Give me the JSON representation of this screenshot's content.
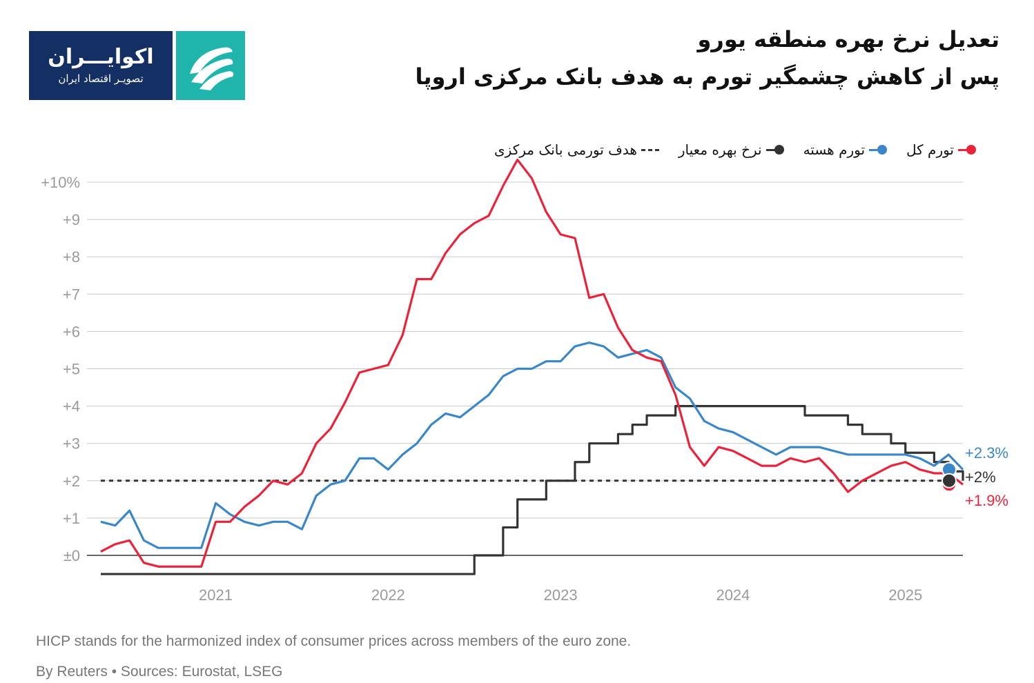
{
  "logo": {
    "name": "اکوایـــران",
    "tagline": "تصویـر اقتصاد ایران"
  },
  "title": {
    "line1": "تعدیل نرخ بهره منطقه یورو",
    "line2": "پس از کاهش چشمگیر تورم به هدف بانک مرکزی اروپا"
  },
  "legend": [
    {
      "label": "تورم کل",
      "color": "#e8233a",
      "style": "line-dot"
    },
    {
      "label": "تورم هسته",
      "color": "#3a86c6",
      "style": "line-dot"
    },
    {
      "label": "نرخ بهره معیار",
      "color": "#333333",
      "style": "line-dot"
    },
    {
      "label": "هدف تورمی بانک مرکزی",
      "color": "#333333",
      "style": "dash"
    }
  ],
  "notes": {
    "line1": "HICP stands for the harmonized index of consumer prices across members of the euro zone.",
    "line2": "By Reuters • Sources: Eurostat, LSEG"
  },
  "chart_data": {
    "type": "line",
    "ylim": [
      -0.5,
      10.5
    ],
    "y_ticks": [
      {
        "value": 10,
        "label": "+10%"
      },
      {
        "value": 9,
        "label": "+9"
      },
      {
        "value": 8,
        "label": "+8"
      },
      {
        "value": 7,
        "label": "+7"
      },
      {
        "value": 6,
        "label": "+6"
      },
      {
        "value": 5,
        "label": "+5"
      },
      {
        "value": 4,
        "label": "+4"
      },
      {
        "value": 3,
        "label": "+3"
      },
      {
        "value": 2,
        "label": "+2"
      },
      {
        "value": 1,
        "label": "+1"
      },
      {
        "value": 0,
        "label": "±0"
      }
    ],
    "x_ticks": [
      {
        "value": "2021-01",
        "label": "2021"
      },
      {
        "value": "2022-01",
        "label": "2022"
      },
      {
        "value": "2023-01",
        "label": "2023"
      },
      {
        "value": "2024-01",
        "label": "2024"
      },
      {
        "value": "2025-01",
        "label": "2025"
      }
    ],
    "grid": true,
    "target": 2,
    "series": [
      {
        "name": "تورم کل",
        "color": "#e8233a",
        "end_label": "+1.9%",
        "x": [
          "2020-05",
          "2020-06",
          "2020-07",
          "2020-08",
          "2020-09",
          "2020-10",
          "2020-11",
          "2020-12",
          "2021-01",
          "2021-02",
          "2021-03",
          "2021-04",
          "2021-05",
          "2021-06",
          "2021-07",
          "2021-08",
          "2021-09",
          "2021-10",
          "2021-11",
          "2021-12",
          "2022-01",
          "2022-02",
          "2022-03",
          "2022-04",
          "2022-05",
          "2022-06",
          "2022-07",
          "2022-08",
          "2022-09",
          "2022-10",
          "2022-11",
          "2022-12",
          "2023-01",
          "2023-02",
          "2023-03",
          "2023-04",
          "2023-05",
          "2023-06",
          "2023-07",
          "2023-08",
          "2023-09",
          "2023-10",
          "2023-11",
          "2023-12",
          "2024-01",
          "2024-02",
          "2024-03",
          "2024-04",
          "2024-05",
          "2024-06",
          "2024-07",
          "2024-08",
          "2024-09",
          "2024-10",
          "2024-11",
          "2024-12",
          "2025-01",
          "2025-02",
          "2025-03",
          "2025-04",
          "2025-05"
        ],
        "values": [
          0.1,
          0.3,
          0.4,
          -0.2,
          -0.3,
          -0.3,
          -0.3,
          -0.3,
          0.9,
          0.9,
          1.3,
          1.6,
          2.0,
          1.9,
          2.2,
          3.0,
          3.4,
          4.1,
          4.9,
          5.0,
          5.1,
          5.9,
          7.4,
          7.4,
          8.1,
          8.6,
          8.9,
          9.1,
          9.9,
          10.6,
          10.1,
          9.2,
          8.6,
          8.5,
          6.9,
          7.0,
          6.1,
          5.5,
          5.3,
          5.2,
          4.3,
          2.9,
          2.4,
          2.9,
          2.8,
          2.6,
          2.4,
          2.4,
          2.6,
          2.5,
          2.6,
          2.2,
          1.7,
          2.0,
          2.2,
          2.4,
          2.5,
          2.3,
          2.2,
          2.2,
          1.9
        ]
      },
      {
        "name": "تورم هسته",
        "color": "#3a86c6",
        "end_label": "+2.3%",
        "x": [
          "2020-05",
          "2020-06",
          "2020-07",
          "2020-08",
          "2020-09",
          "2020-10",
          "2020-11",
          "2020-12",
          "2021-01",
          "2021-02",
          "2021-03",
          "2021-04",
          "2021-05",
          "2021-06",
          "2021-07",
          "2021-08",
          "2021-09",
          "2021-10",
          "2021-11",
          "2021-12",
          "2022-01",
          "2022-02",
          "2022-03",
          "2022-04",
          "2022-05",
          "2022-06",
          "2022-07",
          "2022-08",
          "2022-09",
          "2022-10",
          "2022-11",
          "2022-12",
          "2023-01",
          "2023-02",
          "2023-03",
          "2023-04",
          "2023-05",
          "2023-06",
          "2023-07",
          "2023-08",
          "2023-09",
          "2023-10",
          "2023-11",
          "2023-12",
          "2024-01",
          "2024-02",
          "2024-03",
          "2024-04",
          "2024-05",
          "2024-06",
          "2024-07",
          "2024-08",
          "2024-09",
          "2024-10",
          "2024-11",
          "2024-12",
          "2025-01",
          "2025-02",
          "2025-03",
          "2025-04",
          "2025-05"
        ],
        "values": [
          0.9,
          0.8,
          1.2,
          0.4,
          0.2,
          0.2,
          0.2,
          0.2,
          1.4,
          1.1,
          0.9,
          0.8,
          0.9,
          0.9,
          0.7,
          1.6,
          1.9,
          2.0,
          2.6,
          2.6,
          2.3,
          2.7,
          3.0,
          3.5,
          3.8,
          3.7,
          4.0,
          4.3,
          4.8,
          5.0,
          5.0,
          5.2,
          5.2,
          5.6,
          5.7,
          5.6,
          5.3,
          5.4,
          5.5,
          5.3,
          4.5,
          4.2,
          3.6,
          3.4,
          3.3,
          3.1,
          2.9,
          2.7,
          2.9,
          2.9,
          2.9,
          2.8,
          2.7,
          2.7,
          2.7,
          2.7,
          2.7,
          2.6,
          2.4,
          2.7,
          2.3
        ]
      },
      {
        "name": "نرخ بهره معیار",
        "color": "#333333",
        "end_label": "+2%",
        "step": true,
        "x": [
          "2020-05",
          "2022-07",
          "2022-09",
          "2022-10",
          "2022-11",
          "2022-12",
          "2023-01",
          "2023-02",
          "2023-03",
          "2023-04",
          "2023-05",
          "2023-06",
          "2023-07",
          "2023-09",
          "2024-06",
          "2024-09",
          "2024-10",
          "2024-12",
          "2025-01",
          "2025-03",
          "2025-04",
          "2025-05"
        ],
        "values": [
          -0.5,
          0.0,
          0.75,
          1.5,
          1.5,
          2.0,
          2.0,
          2.5,
          3.0,
          3.0,
          3.25,
          3.5,
          3.75,
          4.0,
          3.75,
          3.5,
          3.25,
          3.0,
          2.75,
          2.5,
          2.25,
          2.0
        ]
      }
    ]
  }
}
